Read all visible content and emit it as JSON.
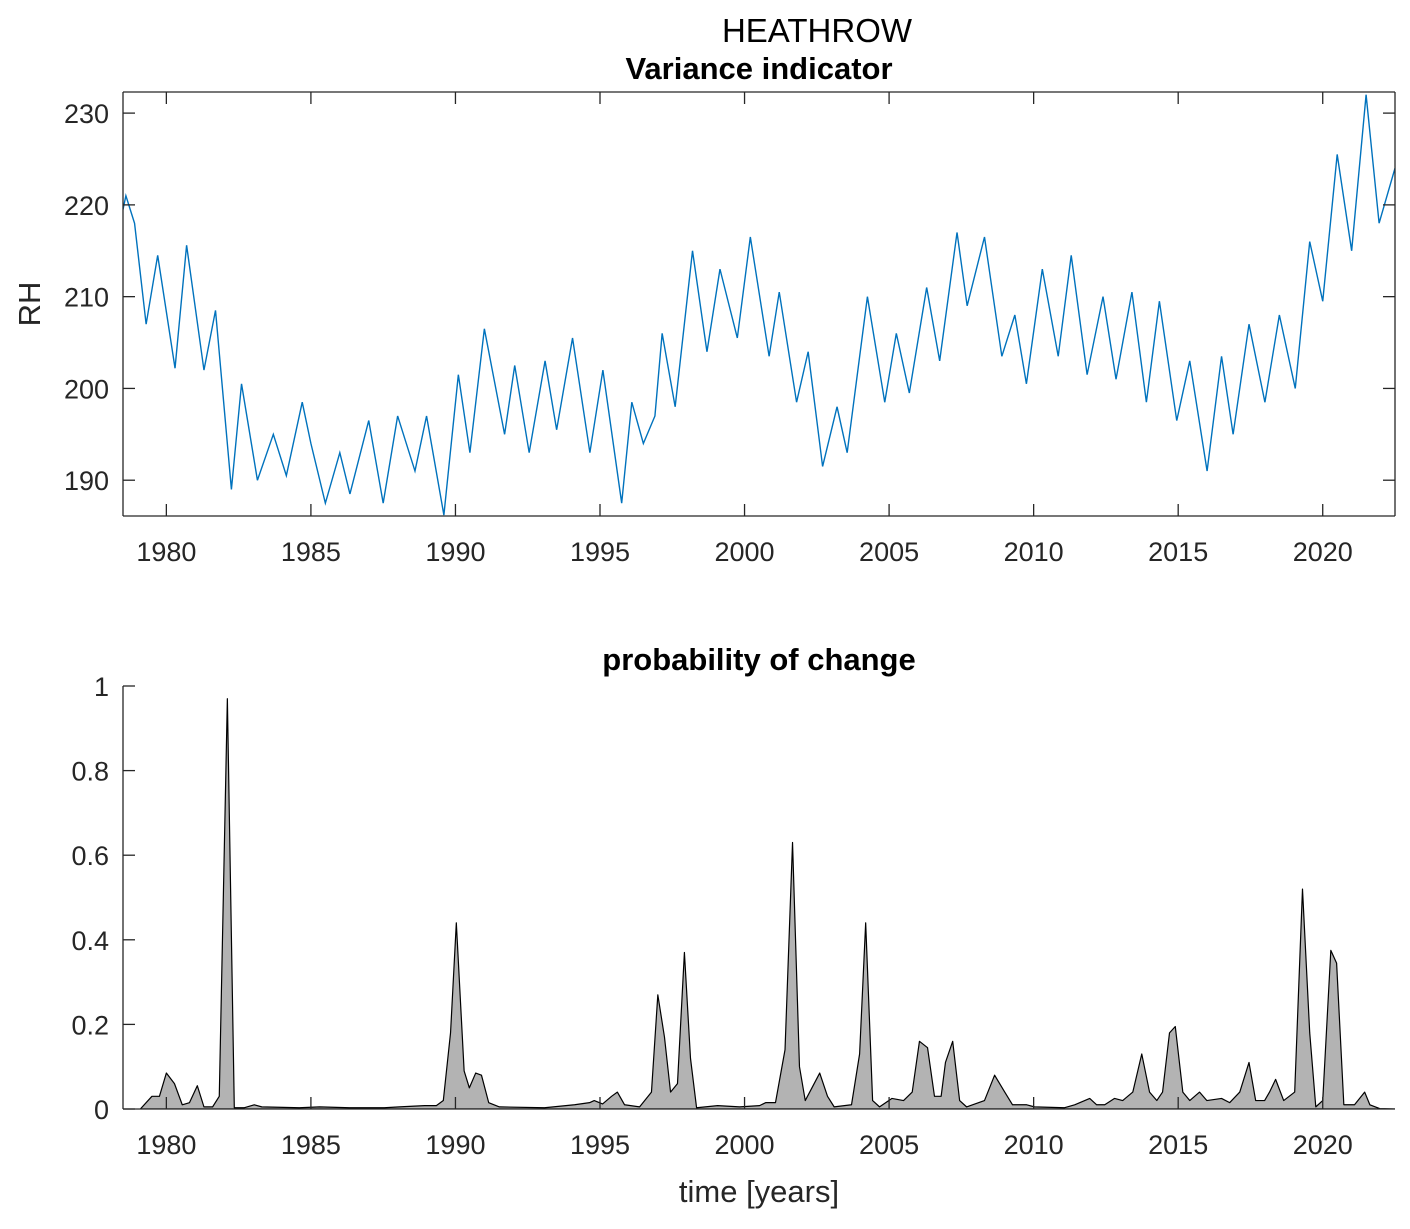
{
  "figure_title": "HEATHROW",
  "chart_data": [
    {
      "type": "line",
      "title": "Variance indicator",
      "y_label": "RH",
      "color": "#0072bd",
      "box": true,
      "xlim": [
        1978.5,
        2022.5
      ],
      "xticks": [
        1980,
        1985,
        1990,
        1995,
        2000,
        2005,
        2010,
        2015,
        2020
      ],
      "ylim": [
        186.1,
        232.3
      ],
      "yticks": [
        190,
        200,
        210,
        220,
        230
      ],
      "x": [
        1978.5,
        1978.6,
        1978.9,
        1979.3,
        1979.7,
        1980.3,
        1980.7,
        1981.3,
        1981.7,
        1982.25,
        1982.6,
        1983.15,
        1983.7,
        1984.15,
        1984.7,
        1985.0,
        1985.5,
        1986.0,
        1986.35,
        1987.0,
        1987.5,
        1988.0,
        1988.6,
        1989.0,
        1989.6,
        1990.1,
        1990.5,
        1991.0,
        1991.7,
        1992.05,
        1992.55,
        1993.1,
        1993.5,
        1994.05,
        1994.65,
        1995.1,
        1995.75,
        1996.1,
        1996.5,
        1996.9,
        1997.15,
        1997.6,
        1998.2,
        1998.7,
        1999.15,
        1999.75,
        2000.2,
        2000.85,
        2001.2,
        2001.8,
        2002.2,
        2002.7,
        2003.2,
        2003.55,
        2004.25,
        2004.85,
        2005.25,
        2005.7,
        2006.3,
        2006.75,
        2007.35,
        2007.7,
        2008.3,
        2008.9,
        2009.35,
        2009.75,
        2010.3,
        2010.85,
        2011.3,
        2011.85,
        2012.4,
        2012.85,
        2013.4,
        2013.9,
        2014.35,
        2014.95,
        2015.4,
        2016.0,
        2016.5,
        2016.9,
        2017.45,
        2018.0,
        2018.5,
        2019.05,
        2019.55,
        2020.0,
        2020.5,
        2021.0,
        2021.5,
        2021.95,
        2022.5
      ],
      "values": [
        219.5,
        221,
        218,
        207,
        214.5,
        202.2,
        215.6,
        202,
        208.5,
        189,
        200.5,
        190,
        195,
        190.5,
        198.5,
        194,
        187.5,
        193,
        188.5,
        196.5,
        187.5,
        197,
        191,
        197,
        186.2,
        201.5,
        193,
        206.5,
        195,
        202.5,
        193,
        203,
        195.5,
        205.5,
        193,
        202,
        187.5,
        198.5,
        194,
        197,
        206,
        198,
        215,
        204,
        213,
        205.5,
        216.5,
        203.5,
        210.5,
        198.5,
        204,
        191.5,
        198,
        193,
        210,
        198.5,
        206,
        199.5,
        211,
        203,
        217,
        209,
        216.5,
        203.5,
        208,
        200.5,
        213,
        203.5,
        214.5,
        201.5,
        210,
        201,
        210.5,
        198.5,
        209.5,
        196.5,
        203,
        191,
        203.5,
        195,
        207,
        198.5,
        208,
        200,
        216,
        209.5,
        225.5,
        215,
        232,
        218,
        224
      ]
    },
    {
      "type": "area",
      "title": "probability of change",
      "x_label": "time [years]",
      "color": "#b3b3b3",
      "edge_color": "#000000",
      "box": false,
      "xlim": [
        1978.5,
        2022.5
      ],
      "xticks": [
        1980,
        1985,
        1990,
        1995,
        2000,
        2005,
        2010,
        2015,
        2020
      ],
      "ylim": [
        0,
        1
      ],
      "yticks": [
        0,
        0.2,
        0.4,
        0.6,
        0.8,
        1
      ],
      "x": [
        1979.1,
        1979.5,
        1979.76,
        1980.0,
        1980.28,
        1980.55,
        1980.8,
        1981.07,
        1981.3,
        1981.6,
        1981.83,
        1982.11,
        1982.35,
        1982.7,
        1983.04,
        1983.3,
        1984.6,
        1985.3,
        1986.33,
        1987.54,
        1988.06,
        1988.93,
        1989.34,
        1989.58,
        1989.83,
        1990.03,
        1990.3,
        1990.48,
        1990.7,
        1990.9,
        1991.15,
        1991.52,
        1993.08,
        1994.12,
        1994.64,
        1994.8,
        1995.09,
        1995.4,
        1995.6,
        1995.85,
        1996.37,
        1996.78,
        1997.0,
        1997.23,
        1997.44,
        1997.68,
        1997.92,
        1998.13,
        1998.34,
        1999.07,
        1999.83,
        2000.52,
        2000.73,
        2001.07,
        2001.4,
        2001.66,
        2001.9,
        2002.1,
        2002.6,
        2002.87,
        2003.1,
        2003.7,
        2003.98,
        2004.19,
        2004.43,
        2004.67,
        2005.1,
        2005.5,
        2005.8,
        2006.05,
        2006.33,
        2006.57,
        2006.8,
        2006.95,
        2007.2,
        2007.44,
        2007.68,
        2008.3,
        2008.65,
        2009.0,
        2009.27,
        2009.76,
        2010.03,
        2011.07,
        2011.42,
        2011.94,
        2012.18,
        2012.46,
        2012.8,
        2013.08,
        2013.43,
        2013.74,
        2014.01,
        2014.26,
        2014.46,
        2014.7,
        2014.9,
        2015.16,
        2015.4,
        2015.74,
        2015.99,
        2016.5,
        2016.78,
        2017.13,
        2017.45,
        2017.68,
        2017.99,
        2018.16,
        2018.37,
        2018.65,
        2019.03,
        2019.3,
        2019.55,
        2019.76,
        2020.0,
        2020.28,
        2020.48,
        2020.73,
        2021.1,
        2021.45,
        2021.63,
        2021.97,
        2022.5
      ],
      "values": [
        0,
        0.03,
        0.03,
        0.085,
        0.06,
        0.01,
        0.015,
        0.055,
        0.005,
        0.005,
        0.03,
        0.97,
        0.003,
        0.003,
        0.01,
        0.005,
        0.003,
        0.005,
        0.003,
        0.003,
        0.005,
        0.008,
        0.008,
        0.02,
        0.18,
        0.44,
        0.09,
        0.05,
        0.085,
        0.08,
        0.015,
        0.005,
        0.003,
        0.01,
        0.015,
        0.02,
        0.012,
        0.03,
        0.04,
        0.01,
        0.005,
        0.04,
        0.27,
        0.17,
        0.04,
        0.06,
        0.37,
        0.12,
        0.003,
        0.008,
        0.005,
        0.008,
        0.015,
        0.015,
        0.14,
        0.63,
        0.1,
        0.02,
        0.085,
        0.03,
        0.005,
        0.01,
        0.13,
        0.44,
        0.02,
        0.005,
        0.025,
        0.02,
        0.04,
        0.16,
        0.145,
        0.03,
        0.03,
        0.11,
        0.16,
        0.02,
        0.005,
        0.02,
        0.08,
        0.04,
        0.01,
        0.01,
        0.005,
        0.003,
        0.01,
        0.025,
        0.01,
        0.01,
        0.025,
        0.02,
        0.04,
        0.13,
        0.04,
        0.02,
        0.04,
        0.18,
        0.195,
        0.04,
        0.02,
        0.04,
        0.02,
        0.025,
        0.015,
        0.04,
        0.11,
        0.02,
        0.02,
        0.04,
        0.07,
        0.02,
        0.04,
        0.52,
        0.18,
        0.005,
        0.02,
        0.375,
        0.345,
        0.01,
        0.01,
        0.04,
        0.01,
        0.001,
        0
      ]
    }
  ]
}
